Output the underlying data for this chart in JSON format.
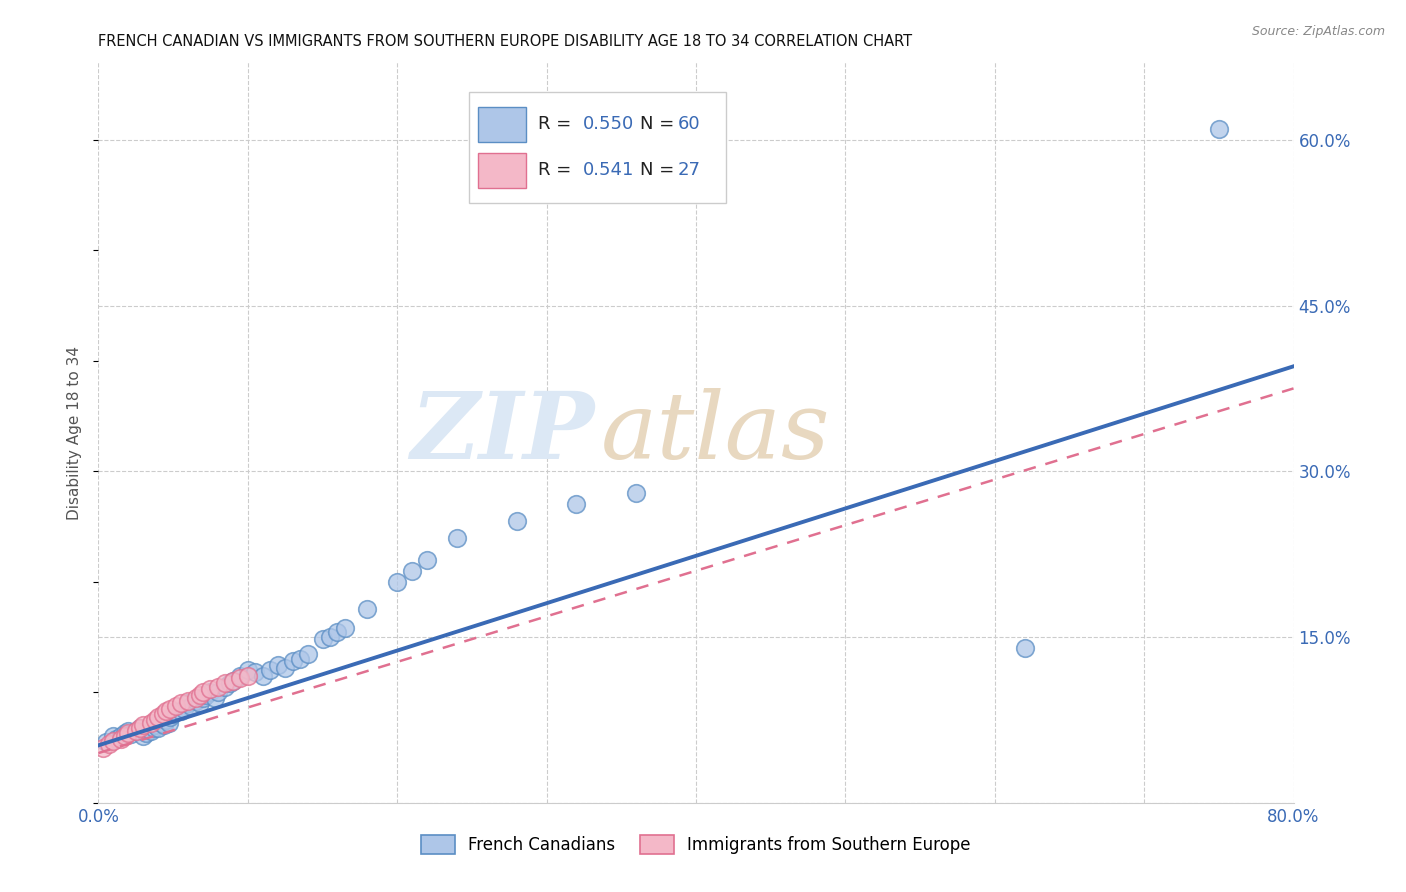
{
  "title": "FRENCH CANADIAN VS IMMIGRANTS FROM SOUTHERN EUROPE DISABILITY AGE 18 TO 34 CORRELATION CHART",
  "source": "Source: ZipAtlas.com",
  "ylabel": "Disability Age 18 to 34",
  "xlim": [
    0.0,
    0.8
  ],
  "ylim": [
    0.0,
    0.67
  ],
  "x_ticks": [
    0.0,
    0.1,
    0.2,
    0.3,
    0.4,
    0.5,
    0.6,
    0.7,
    0.8
  ],
  "y_ticks_right": [
    0.0,
    0.15,
    0.3,
    0.45,
    0.6
  ],
  "y_tick_labels_right": [
    "",
    "15.0%",
    "30.0%",
    "45.0%",
    "60.0%"
  ],
  "grid_color": "#cccccc",
  "background_color": "#ffffff",
  "watermark_zip": "ZIP",
  "watermark_atlas": "atlas",
  "blue_color": "#aec6e8",
  "blue_edge_color": "#5b8ec4",
  "pink_color": "#f4b8c8",
  "pink_edge_color": "#e07090",
  "blue_line_color": "#3a6ab5",
  "pink_line_color": "#e07090",
  "blue_scatter_x": [
    0.005,
    0.01,
    0.012,
    0.015,
    0.018,
    0.02,
    0.022,
    0.025,
    0.028,
    0.03,
    0.032,
    0.035,
    0.037,
    0.038,
    0.04,
    0.042,
    0.044,
    0.045,
    0.047,
    0.048,
    0.05,
    0.052,
    0.055,
    0.057,
    0.06,
    0.062,
    0.065,
    0.068,
    0.07,
    0.072,
    0.075,
    0.078,
    0.08,
    0.085,
    0.088,
    0.09,
    0.095,
    0.1,
    0.105,
    0.11,
    0.115,
    0.12,
    0.125,
    0.13,
    0.135,
    0.14,
    0.15,
    0.155,
    0.16,
    0.165,
    0.18,
    0.2,
    0.21,
    0.22,
    0.24,
    0.28,
    0.32,
    0.36,
    0.62,
    0.75
  ],
  "blue_scatter_y": [
    0.055,
    0.06,
    0.058,
    0.06,
    0.063,
    0.065,
    0.062,
    0.065,
    0.068,
    0.06,
    0.063,
    0.065,
    0.068,
    0.07,
    0.068,
    0.072,
    0.07,
    0.075,
    0.072,
    0.078,
    0.08,
    0.082,
    0.083,
    0.085,
    0.09,
    0.088,
    0.092,
    0.09,
    0.095,
    0.098,
    0.1,
    0.095,
    0.1,
    0.105,
    0.108,
    0.11,
    0.115,
    0.12,
    0.118,
    0.115,
    0.12,
    0.125,
    0.122,
    0.128,
    0.13,
    0.135,
    0.148,
    0.15,
    0.155,
    0.158,
    0.175,
    0.2,
    0.21,
    0.22,
    0.24,
    0.255,
    0.27,
    0.28,
    0.14,
    0.61
  ],
  "pink_scatter_x": [
    0.003,
    0.007,
    0.01,
    0.015,
    0.018,
    0.02,
    0.025,
    0.028,
    0.03,
    0.035,
    0.038,
    0.04,
    0.043,
    0.045,
    0.048,
    0.052,
    0.055,
    0.06,
    0.065,
    0.068,
    0.07,
    0.075,
    0.08,
    0.085,
    0.09,
    0.095,
    0.1
  ],
  "pink_scatter_y": [
    0.05,
    0.053,
    0.056,
    0.058,
    0.06,
    0.063,
    0.065,
    0.068,
    0.07,
    0.072,
    0.075,
    0.078,
    0.08,
    0.083,
    0.085,
    0.088,
    0.09,
    0.092,
    0.095,
    0.098,
    0.1,
    0.103,
    0.105,
    0.108,
    0.11,
    0.113,
    0.115
  ],
  "blue_trend_x0": 0.0,
  "blue_trend_y0": 0.052,
  "blue_trend_x1": 0.8,
  "blue_trend_y1": 0.395,
  "pink_trend_x0": 0.0,
  "pink_trend_y0": 0.045,
  "pink_trend_x1": 0.8,
  "pink_trend_y1": 0.375,
  "legend_r1_val": "0.550",
  "legend_n1_val": "60",
  "legend_r2_val": "0.541",
  "legend_n2_val": "27",
  "legend_label_blue": "French Canadians",
  "legend_label_pink": "Immigrants from Southern Europe"
}
